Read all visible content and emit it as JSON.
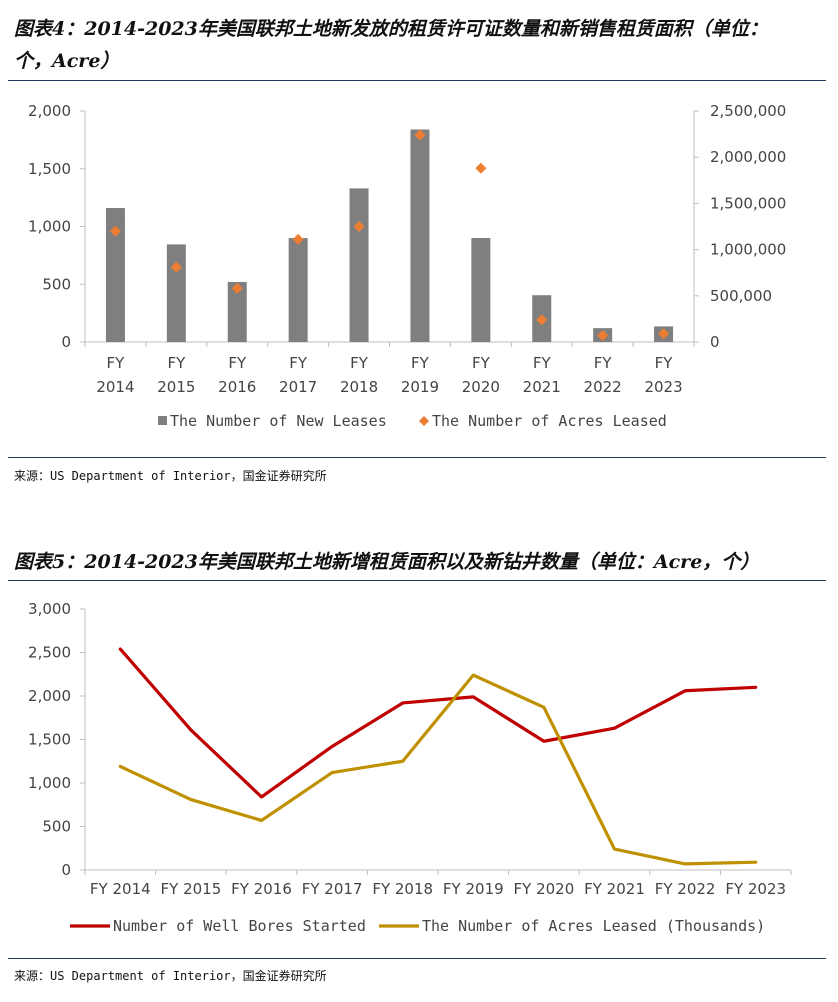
{
  "figure4": {
    "title_line1": "图表4：2014-2023年美国联邦土地新发放的租赁许可证数量和新销售租赁面积（单位：",
    "title_line2": "个，Acre）",
    "source": "来源：US Department of Interior，国金证券研究所"
  },
  "figure5": {
    "title": "图表5：2014-2023年美国联邦土地新增租赁面积以及新钻井数量（单位：Acre，个）",
    "source": "来源：US Department of Interior，国金证券研究所"
  },
  "chart_data": [
    {
      "type": "bar",
      "title": "",
      "categories": [
        "FY 2014",
        "FY 2015",
        "FY 2016",
        "FY 2017",
        "FY 2018",
        "FY 2019",
        "FY 2020",
        "FY 2021",
        "FY 2022",
        "FY 2023"
      ],
      "category_lines": [
        [
          "FY",
          "2014"
        ],
        [
          "FY",
          "2015"
        ],
        [
          "FY",
          "2016"
        ],
        [
          "FY",
          "2017"
        ],
        [
          "FY",
          "2018"
        ],
        [
          "FY",
          "2019"
        ],
        [
          "FY",
          "2020"
        ],
        [
          "FY",
          "2021"
        ],
        [
          "FY",
          "2022"
        ],
        [
          "FY",
          "2023"
        ]
      ],
      "series": [
        {
          "name": "The Number of New Leases",
          "kind": "bar",
          "axis": "left",
          "color": "#7f7f7f",
          "values": [
            1160,
            845,
            520,
            900,
            1330,
            1840,
            900,
            405,
            120,
            135
          ]
        },
        {
          "name": "The Number of Acres Leased",
          "kind": "marker-diamond",
          "axis": "right",
          "color": "#ed7d31",
          "values": [
            1200000,
            810000,
            580000,
            1110000,
            1250000,
            2240000,
            1880000,
            240000,
            70000,
            90000
          ]
        }
      ],
      "ylim": [
        0,
        2000
      ],
      "yticks": [
        "0",
        "500",
        "1,000",
        "1,500",
        "2,000"
      ],
      "y2lim": [
        0,
        2500000
      ],
      "y2ticks": [
        "0",
        "500,000",
        "1,000,000",
        "1,500,000",
        "2,000,000",
        "2,500,000"
      ],
      "grid": false,
      "legend": "bottom"
    },
    {
      "type": "line",
      "title": "",
      "categories": [
        "FY 2014",
        "FY 2015",
        "FY 2016",
        "FY 2017",
        "FY 2018",
        "FY 2019",
        "FY 2020",
        "FY 2021",
        "FY 2022",
        "FY 2023"
      ],
      "series": [
        {
          "name": "Number of Well Bores Started",
          "color": "#c00000",
          "values": [
            2540,
            1610,
            840,
            1420,
            1920,
            1990,
            1480,
            1630,
            2060,
            2100
          ]
        },
        {
          "name": "The Number of Acres Leased (Thousands)",
          "color": "#bf9000",
          "values": [
            1190,
            810,
            570,
            1120,
            1250,
            2240,
            1870,
            240,
            70,
            90
          ]
        }
      ],
      "ylim": [
        0,
        3000
      ],
      "yticks": [
        "0",
        "500",
        "1,000",
        "1,500",
        "2,000",
        "2,500",
        "3,000"
      ],
      "grid": false,
      "legend": "bottom"
    }
  ]
}
